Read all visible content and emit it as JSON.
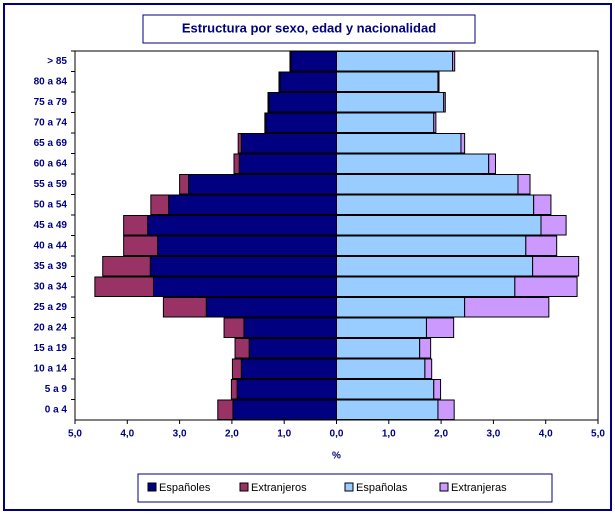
{
  "chart_data": {
    "type": "pyramid",
    "title": "Estructura por sexo, edad y nacionalidad",
    "xlabel": "%",
    "categories": [
      "> 85",
      "80 a 84",
      "75 a 79",
      "70 a 74",
      "65 a 69",
      "60 a 64",
      "55 a 59",
      "50 a 54",
      "45 a 49",
      "40 a 44",
      "35 a 39",
      "30 a 34",
      "25 a 29",
      "20 a 24",
      "15 a 19",
      "10 a 14",
      "5 a 9",
      "0 a 4"
    ],
    "series": [
      {
        "name": "Españoles",
        "color": "#000080",
        "values": [
          -0.87,
          -1.08,
          -1.29,
          -1.35,
          -1.82,
          -1.86,
          -2.83,
          -3.21,
          -3.61,
          -3.42,
          -3.56,
          -3.5,
          -2.49,
          -1.77,
          -1.67,
          -1.82,
          -1.9,
          -1.98
        ]
      },
      {
        "name": "Extranjeros",
        "color": "#993366",
        "values": [
          -0.02,
          -0.02,
          -0.02,
          -0.02,
          -0.06,
          -0.1,
          -0.17,
          -0.34,
          -0.46,
          -0.65,
          -0.91,
          -1.12,
          -0.82,
          -0.38,
          -0.27,
          -0.17,
          -0.11,
          -0.29
        ]
      },
      {
        "name": "Españolas",
        "color": "#99ccff",
        "values": [
          2.22,
          1.94,
          2.05,
          1.86,
          2.38,
          2.91,
          3.47,
          3.77,
          3.91,
          3.62,
          3.75,
          3.41,
          2.45,
          1.72,
          1.59,
          1.69,
          1.86,
          1.94
        ]
      },
      {
        "name": "Extranjeras",
        "color": "#cc99ff",
        "values": [
          0.04,
          0.02,
          0.03,
          0.04,
          0.07,
          0.13,
          0.23,
          0.33,
          0.48,
          0.59,
          0.88,
          1.19,
          1.61,
          0.52,
          0.21,
          0.13,
          0.13,
          0.31
        ]
      }
    ],
    "xlim": [
      -5,
      5
    ],
    "xticks": [
      {
        "value": -5,
        "label": "5,0"
      },
      {
        "value": -4,
        "label": "4,0"
      },
      {
        "value": -3,
        "label": "3,0"
      },
      {
        "value": -2,
        "label": "2,0"
      },
      {
        "value": -1,
        "label": "1,0"
      },
      {
        "value": 0,
        "label": "0,0"
      },
      {
        "value": 1,
        "label": "1,0"
      },
      {
        "value": 2,
        "label": "2,0"
      },
      {
        "value": 3,
        "label": "3,0"
      },
      {
        "value": 4,
        "label": "4,0"
      },
      {
        "value": 5,
        "label": "5,0"
      }
    ],
    "legend": "bottom"
  }
}
